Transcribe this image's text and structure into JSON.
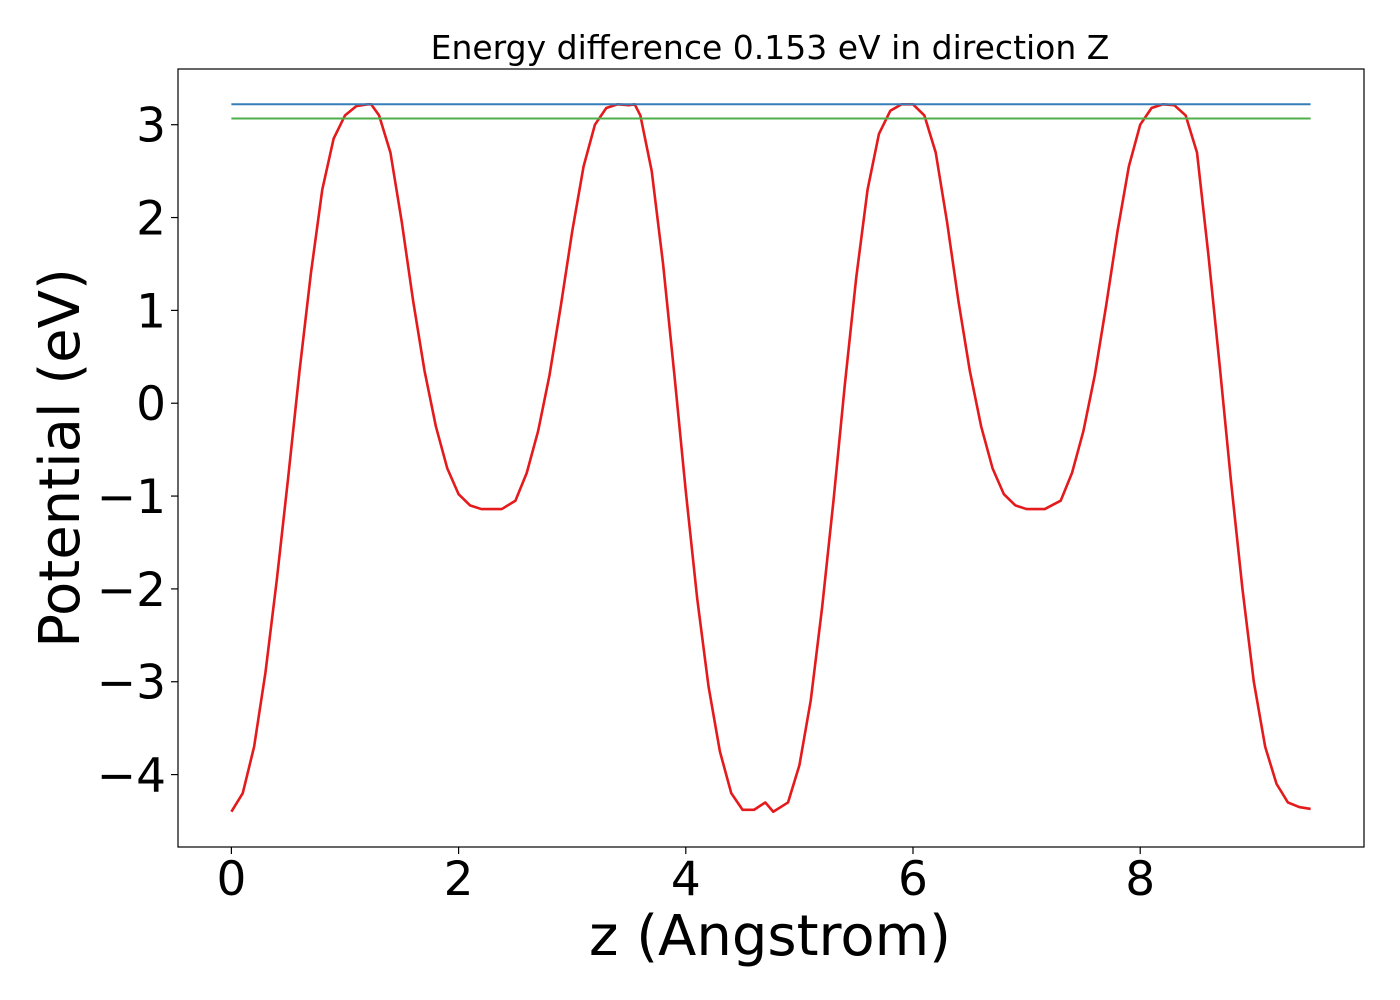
{
  "chart_data": {
    "type": "line",
    "title": "Energy difference 0.153 eV in direction Z",
    "xlabel": "z (Angstrom)",
    "ylabel": "Potential (eV)",
    "xlim": [
      -0.47,
      9.97
    ],
    "ylim": [
      -4.78,
      3.6
    ],
    "xticks": [
      0,
      2,
      4,
      6,
      8
    ],
    "xtick_labels": [
      "0",
      "2",
      "4",
      "6",
      "8"
    ],
    "yticks": [
      -4,
      -3,
      -2,
      -1,
      0,
      1,
      2,
      3
    ],
    "ytick_labels": [
      "−4",
      "−3",
      "−2",
      "−1",
      "0",
      "1",
      "2",
      "3"
    ],
    "grid": false,
    "colors": {
      "potential": "#e41a1c",
      "upper_line": "#377eb8",
      "lower_line": "#4daf4a"
    },
    "series": [
      {
        "style": "curve",
        "color": "#e41a1c",
        "x": [
          0.0,
          0.1,
          0.2,
          0.3,
          0.4,
          0.5,
          0.6,
          0.7,
          0.8,
          0.9,
          1.0,
          1.1,
          1.2,
          1.23,
          1.3,
          1.4,
          1.5,
          1.6,
          1.7,
          1.8,
          1.9,
          2.0,
          2.1,
          2.2,
          2.3,
          2.38,
          2.5,
          2.6,
          2.7,
          2.8,
          2.9,
          3.0,
          3.1,
          3.2,
          3.3,
          3.4,
          3.5,
          3.55,
          3.6,
          3.7,
          3.8,
          3.9,
          4.0,
          4.1,
          4.2,
          4.3,
          4.4,
          4.5,
          4.6,
          4.7,
          4.77,
          4.9,
          5.0,
          5.1,
          5.2,
          5.3,
          5.4,
          5.5,
          5.6,
          5.7,
          5.8,
          5.9,
          6.0,
          6.1,
          6.2,
          6.3,
          6.4,
          6.5,
          6.6,
          6.7,
          6.8,
          6.9,
          7.0,
          7.1,
          7.16,
          7.3,
          7.4,
          7.5,
          7.6,
          7.7,
          7.8,
          7.9,
          8.0,
          8.1,
          8.2,
          8.3,
          8.4,
          8.5,
          8.6,
          8.7,
          8.8,
          8.9,
          9.0,
          9.1,
          9.2,
          9.3,
          9.4,
          9.5
        ],
        "y": [
          -4.4,
          -4.2,
          -3.7,
          -2.9,
          -1.9,
          -0.8,
          0.35,
          1.4,
          2.3,
          2.85,
          3.1,
          3.2,
          3.22,
          3.22,
          3.1,
          2.7,
          1.95,
          1.1,
          0.35,
          -0.25,
          -0.7,
          -0.98,
          -1.1,
          -1.14,
          -1.14,
          -1.14,
          -1.05,
          -0.75,
          -0.3,
          0.3,
          1.05,
          1.85,
          2.55,
          3.0,
          3.18,
          3.22,
          3.21,
          3.22,
          3.1,
          2.5,
          1.5,
          0.3,
          -0.95,
          -2.1,
          -3.05,
          -3.75,
          -4.2,
          -4.38,
          -4.38,
          -4.3,
          -4.4,
          -4.3,
          -3.9,
          -3.2,
          -2.2,
          -1.05,
          0.2,
          1.35,
          2.3,
          2.9,
          3.15,
          3.22,
          3.22,
          3.1,
          2.7,
          1.95,
          1.1,
          0.35,
          -0.25,
          -0.7,
          -0.98,
          -1.1,
          -1.14,
          -1.14,
          -1.14,
          -1.05,
          -0.75,
          -0.3,
          0.3,
          1.05,
          1.85,
          2.55,
          3.0,
          3.18,
          3.22,
          3.21,
          3.1,
          2.7,
          1.6,
          0.4,
          -0.85,
          -2.0,
          -3.0,
          -3.7,
          -4.1,
          -4.3,
          -4.35,
          -4.37
        ]
      },
      {
        "style": "hline",
        "color": "#377eb8",
        "x": [
          0.0,
          9.5
        ],
        "y": [
          3.22,
          3.22
        ]
      },
      {
        "style": "hline",
        "color": "#4daf4a",
        "x": [
          0.0,
          9.5
        ],
        "y": [
          3.067,
          3.067
        ]
      }
    ]
  }
}
